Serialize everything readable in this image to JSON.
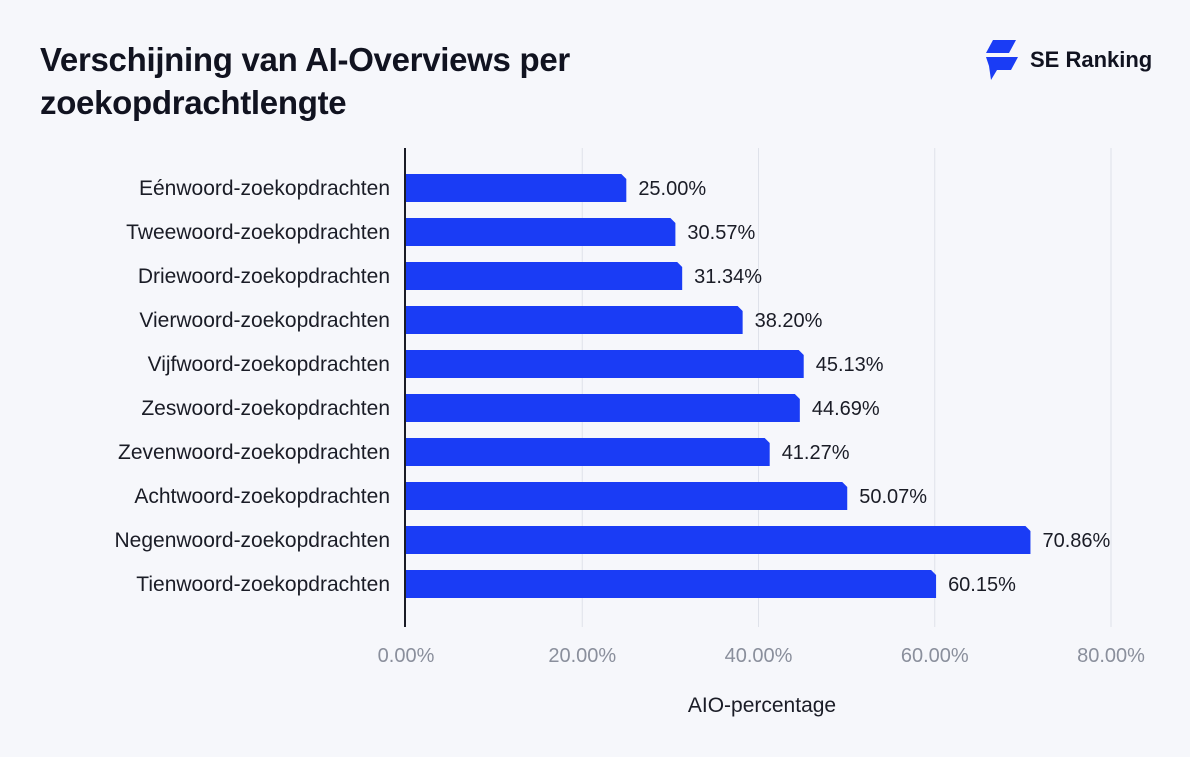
{
  "chart_data": {
    "type": "bar",
    "orientation": "horizontal",
    "title": "Verschijning van AI-Overviews per zoekopdrachtlengte",
    "xlabel": "AIO-percentage",
    "ylabel": "",
    "categories": [
      "Eénwoord-zoekopdrachten",
      "Tweewoord-zoekopdrachten",
      "Driewoord-zoekopdrachten",
      "Vierwoord-zoekopdrachten",
      "Vijfwoord-zoekopdrachten",
      "Zeswoord-zoekopdrachten",
      "Zevenwoord-zoekopdrachten",
      "Achtwoord-zoekopdrachten",
      "Negenwoord-zoekopdrachten",
      "Tienwoord-zoekopdrachten"
    ],
    "values": [
      25.0,
      30.57,
      31.34,
      38.2,
      45.13,
      44.69,
      41.27,
      50.07,
      70.86,
      60.15
    ],
    "value_labels": [
      "25.00%",
      "30.57%",
      "31.34%",
      "38.20%",
      "45.13%",
      "44.69%",
      "41.27%",
      "50.07%",
      "70.86%",
      "60.15%"
    ],
    "xlim": [
      0,
      80
    ],
    "x_ticks": [
      0,
      20,
      40,
      60,
      80
    ],
    "x_tick_labels": [
      "0.00%",
      "20.00%",
      "40.00%",
      "60.00%",
      "80.00%"
    ],
    "grid": true,
    "bar_color": "#1a3cf5"
  },
  "brand": {
    "name": "SE Ranking",
    "icon": "se-ranking-logo-icon",
    "color": "#1a3cf5"
  }
}
